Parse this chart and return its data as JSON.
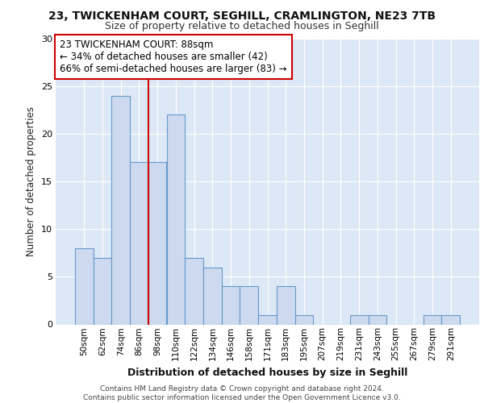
{
  "title1": "23, TWICKENHAM COURT, SEGHILL, CRAMLINGTON, NE23 7TB",
  "title2": "Size of property relative to detached houses in Seghill",
  "xlabel": "Distribution of detached houses by size in Seghill",
  "ylabel": "Number of detached properties",
  "bar_labels": [
    "50sqm",
    "62sqm",
    "74sqm",
    "86sqm",
    "98sqm",
    "110sqm",
    "122sqm",
    "134sqm",
    "146sqm",
    "158sqm",
    "171sqm",
    "183sqm",
    "195sqm",
    "207sqm",
    "219sqm",
    "231sqm",
    "243sqm",
    "255sqm",
    "267sqm",
    "279sqm",
    "291sqm"
  ],
  "bar_values": [
    8,
    7,
    24,
    17,
    17,
    22,
    7,
    6,
    4,
    4,
    1,
    4,
    1,
    0,
    0,
    1,
    1,
    0,
    0,
    1,
    1
  ],
  "bar_color": "#ccd9ee",
  "bar_edgecolor": "#6699cc",
  "bg_color": "#ffffff",
  "plot_bg_color": "#dce8f5",
  "grid_color": "#ffffff",
  "vline_x_index": 3,
  "vline_color": "#cc0000",
  "annotation_line1": "23 TWICKENHAM COURT: 88sqm",
  "annotation_line2": "← 34% of detached houses are smaller (42)",
  "annotation_line3": "66% of semi-detached houses are larger (83) →",
  "annotation_box_color": "#ffffff",
  "annotation_box_edgecolor": "#cc0000",
  "footer_text": "Contains HM Land Registry data © Crown copyright and database right 2024.\nContains public sector information licensed under the Open Government Licence v3.0.",
  "ylim": [
    0,
    30
  ],
  "yticks": [
    0,
    5,
    10,
    15,
    20,
    25,
    30
  ]
}
